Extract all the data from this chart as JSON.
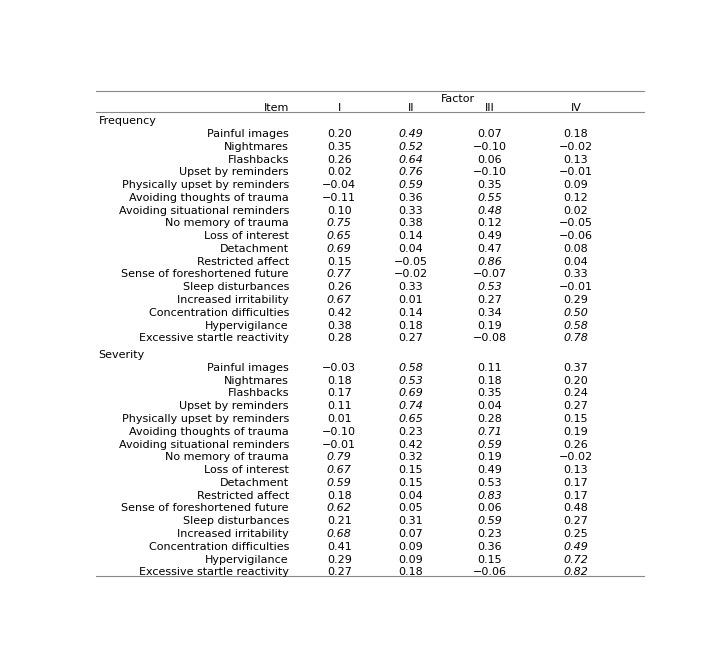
{
  "header_factor": "Factor",
  "col_item": "Item",
  "col_headers": [
    "I",
    "II",
    "III",
    "IV"
  ],
  "sections": [
    {
      "section_label": "Frequency",
      "rows": [
        {
          "item": "Painful images",
          "I": "0.20",
          "II": "0.49",
          "III": "0.07",
          "IV": "0.18",
          "bold": [
            false,
            true,
            false,
            false
          ]
        },
        {
          "item": "Nightmares",
          "I": "0.35",
          "II": "0.52",
          "III": "−0.10",
          "IV": "−0.02",
          "bold": [
            false,
            true,
            false,
            false
          ]
        },
        {
          "item": "Flashbacks",
          "I": "0.26",
          "II": "0.64",
          "III": "0.06",
          "IV": "0.13",
          "bold": [
            false,
            true,
            false,
            false
          ]
        },
        {
          "item": "Upset by reminders",
          "I": "0.02",
          "II": "0.76",
          "III": "−0.10",
          "IV": "−0.01",
          "bold": [
            false,
            true,
            false,
            false
          ]
        },
        {
          "item": "Physically upset by reminders",
          "I": "−0.04",
          "II": "0.59",
          "III": "0.35",
          "IV": "0.09",
          "bold": [
            false,
            true,
            false,
            false
          ]
        },
        {
          "item": "Avoiding thoughts of trauma",
          "I": "−0.11",
          "II": "0.36",
          "III": "0.55",
          "IV": "0.12",
          "bold": [
            false,
            false,
            true,
            false
          ]
        },
        {
          "item": "Avoiding situational reminders",
          "I": "0.10",
          "II": "0.33",
          "III": "0.48",
          "IV": "0.02",
          "bold": [
            false,
            false,
            true,
            false
          ]
        },
        {
          "item": "No memory of trauma",
          "I": "0.75",
          "II": "0.38",
          "III": "0.12",
          "IV": "−0.05",
          "bold": [
            true,
            false,
            false,
            false
          ]
        },
        {
          "item": "Loss of interest",
          "I": "0.65",
          "II": "0.14",
          "III": "0.49",
          "IV": "−0.06",
          "bold": [
            true,
            false,
            false,
            false
          ]
        },
        {
          "item": "Detachment",
          "I": "0.69",
          "II": "0.04",
          "III": "0.47",
          "IV": "0.08",
          "bold": [
            true,
            false,
            false,
            false
          ]
        },
        {
          "item": "Restricted affect",
          "I": "0.15",
          "II": "−0.05",
          "III": "0.86",
          "IV": "0.04",
          "bold": [
            false,
            false,
            true,
            false
          ]
        },
        {
          "item": "Sense of foreshortened future",
          "I": "0.77",
          "II": "−0.02",
          "III": "−0.07",
          "IV": "0.33",
          "bold": [
            true,
            false,
            false,
            false
          ]
        },
        {
          "item": "Sleep disturbances",
          "I": "0.26",
          "II": "0.33",
          "III": "0.53",
          "IV": "−0.01",
          "bold": [
            false,
            false,
            true,
            false
          ]
        },
        {
          "item": "Increased irritability",
          "I": "0.67",
          "II": "0.01",
          "III": "0.27",
          "IV": "0.29",
          "bold": [
            true,
            false,
            false,
            false
          ]
        },
        {
          "item": "Concentration difficulties",
          "I": "0.42",
          "II": "0.14",
          "III": "0.34",
          "IV": "0.50",
          "bold": [
            false,
            false,
            false,
            true
          ]
        },
        {
          "item": "Hypervigilance",
          "I": "0.38",
          "II": "0.18",
          "III": "0.19",
          "IV": "0.58",
          "bold": [
            false,
            false,
            false,
            true
          ]
        },
        {
          "item": "Excessive startle reactivity",
          "I": "0.28",
          "II": "0.27",
          "III": "−0.08",
          "IV": "0.78",
          "bold": [
            false,
            false,
            false,
            true
          ]
        }
      ]
    },
    {
      "section_label": "Severity",
      "rows": [
        {
          "item": "Painful images",
          "I": "−0.03",
          "II": "0.58",
          "III": "0.11",
          "IV": "0.37",
          "bold": [
            false,
            true,
            false,
            false
          ]
        },
        {
          "item": "Nightmares",
          "I": "0.18",
          "II": "0.53",
          "III": "0.18",
          "IV": "0.20",
          "bold": [
            false,
            true,
            false,
            false
          ]
        },
        {
          "item": "Flashbacks",
          "I": "0.17",
          "II": "0.69",
          "III": "0.35",
          "IV": "0.24",
          "bold": [
            false,
            true,
            false,
            false
          ]
        },
        {
          "item": "Upset by reminders",
          "I": "0.11",
          "II": "0.74",
          "III": "0.04",
          "IV": "0.27",
          "bold": [
            false,
            true,
            false,
            false
          ]
        },
        {
          "item": "Physically upset by reminders",
          "I": "0.01",
          "II": "0.65",
          "III": "0.28",
          "IV": "0.15",
          "bold": [
            false,
            true,
            false,
            false
          ]
        },
        {
          "item": "Avoiding thoughts of trauma",
          "I": "−0.10",
          "II": "0.23",
          "III": "0.71",
          "IV": "0.19",
          "bold": [
            false,
            false,
            true,
            false
          ]
        },
        {
          "item": "Avoiding situational reminders",
          "I": "−0.01",
          "II": "0.42",
          "III": "0.59",
          "IV": "0.26",
          "bold": [
            false,
            false,
            true,
            false
          ]
        },
        {
          "item": "No memory of trauma",
          "I": "0.79",
          "II": "0.32",
          "III": "0.19",
          "IV": "−0.02",
          "bold": [
            true,
            false,
            false,
            false
          ]
        },
        {
          "item": "Loss of interest",
          "I": "0.67",
          "II": "0.15",
          "III": "0.49",
          "IV": "0.13",
          "bold": [
            true,
            false,
            false,
            false
          ]
        },
        {
          "item": "Detachment",
          "I": "0.59",
          "II": "0.15",
          "III": "0.53",
          "IV": "0.17",
          "bold": [
            true,
            false,
            false,
            false
          ]
        },
        {
          "item": "Restricted affect",
          "I": "0.18",
          "II": "0.04",
          "III": "0.83",
          "IV": "0.17",
          "bold": [
            false,
            false,
            true,
            false
          ]
        },
        {
          "item": "Sense of foreshortened future",
          "I": "0.62",
          "II": "0.05",
          "III": "0.06",
          "IV": "0.48",
          "bold": [
            true,
            false,
            false,
            false
          ]
        },
        {
          "item": "Sleep disturbances",
          "I": "0.21",
          "II": "0.31",
          "III": "0.59",
          "IV": "0.27",
          "bold": [
            false,
            false,
            true,
            false
          ]
        },
        {
          "item": "Increased irritability",
          "I": "0.68",
          "II": "0.07",
          "III": "0.23",
          "IV": "0.25",
          "bold": [
            true,
            false,
            false,
            false
          ]
        },
        {
          "item": "Concentration difficulties",
          "I": "0.41",
          "II": "0.09",
          "III": "0.36",
          "IV": "0.49",
          "bold": [
            false,
            false,
            false,
            true
          ]
        },
        {
          "item": "Hypervigilance",
          "I": "0.29",
          "II": "0.09",
          "III": "0.15",
          "IV": "0.72",
          "bold": [
            false,
            false,
            false,
            true
          ]
        },
        {
          "item": "Excessive startle reactivity",
          "I": "0.27",
          "II": "0.18",
          "III": "−0.06",
          "IV": "0.82",
          "bold": [
            false,
            false,
            false,
            true
          ]
        }
      ]
    }
  ],
  "bg_color": "#ffffff",
  "text_color": "#000000",
  "line_color": "#888888",
  "font_size": 8.0,
  "line_lw": 0.8
}
